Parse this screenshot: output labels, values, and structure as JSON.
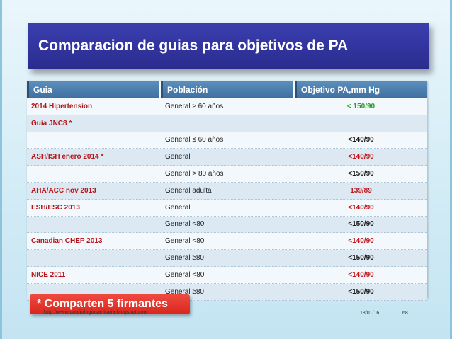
{
  "title": "Comparacion de guias para objetivos de PA",
  "table": {
    "headers": [
      "Guia",
      "Población",
      "Objetivo PA,mm Hg"
    ],
    "rows": [
      {
        "guia": "2014 Hipertension",
        "poblacion": "General ≥ 60 años",
        "objetivo": "< 150/90",
        "objetivo_color": "#2c9b2c"
      },
      {
        "guia": "Guia JNC8  *",
        "poblacion": "",
        "objetivo": "",
        "objetivo_color": "#1a1a1a"
      },
      {
        "guia": "",
        "poblacion": "General ≤ 60 años",
        "objetivo": "<140/90",
        "objetivo_color": "#1a1a1a"
      },
      {
        "guia": "ASH/ISH  enero 2014  *",
        "poblacion": "General",
        "objetivo": "<140/90",
        "objetivo_color": "#c0171c"
      },
      {
        "guia": "",
        "poblacion": "General > 80 años",
        "objetivo": "<150/90",
        "objetivo_color": "#1a1a1a"
      },
      {
        "guia": "AHA/ACC nov 2013",
        "poblacion": "General adulta",
        "objetivo": "139/89",
        "objetivo_color": "#c0171c"
      },
      {
        "guia": "ESH/ESC 2013",
        "poblacion": "General",
        "objetivo": "<140/90",
        "objetivo_color": "#c0171c"
      },
      {
        "guia": "",
        "poblacion": "General  <80",
        "objetivo": "<150/90",
        "objetivo_color": "#1a1a1a"
      },
      {
        "guia": "Canadian CHEP  2013",
        "poblacion": "General  <80",
        "objetivo": "<140/90",
        "objetivo_color": "#c0171c"
      },
      {
        "guia": "",
        "poblacion": "General  ≥80",
        "objetivo": "<150/90",
        "objetivo_color": "#1a1a1a"
      },
      {
        "guia": "NICE 2011",
        "poblacion": "General  <80",
        "objetivo": "<140/90",
        "objetivo_color": "#c0171c"
      },
      {
        "guia": "",
        "poblacion": "General  ≥80",
        "objetivo": "<150/90",
        "objetivo_color": "#1a1a1a"
      }
    ]
  },
  "footer": {
    "note": "* Comparten 5 firmantes",
    "url": "http://www.cardiologiasanitaria.blogspot.com",
    "date": "18/01/16",
    "page": "68"
  }
}
